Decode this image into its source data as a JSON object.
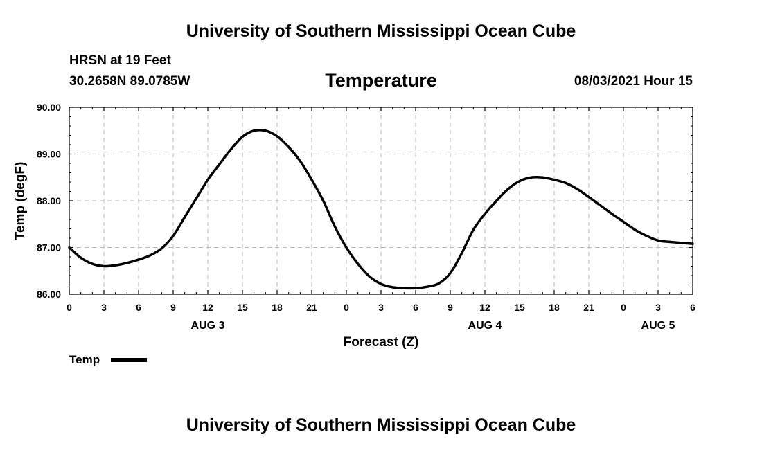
{
  "header": {
    "top_title": "University of Southern Mississippi Ocean Cube",
    "station": "HRSN at 19 Feet",
    "coords": "30.2658N  89.0785W",
    "datetime": "08/03/2021 Hour 15"
  },
  "footer": {
    "bottom_title": "University of Southern Mississippi Ocean Cube"
  },
  "chart_data": {
    "type": "line",
    "title": "Temperature",
    "xlabel": "Forecast (Z)",
    "ylabel": "Temp (degF)",
    "xlim": [
      0,
      54
    ],
    "ylim": [
      86.0,
      90.0
    ],
    "yticks": [
      86.0,
      87.0,
      88.0,
      89.0,
      90.0
    ],
    "ytick_labels": [
      "86.00",
      "87.00",
      "88.00",
      "89.00",
      "90.00"
    ],
    "xticks": [
      0,
      3,
      6,
      9,
      12,
      15,
      18,
      21,
      24,
      27,
      30,
      33,
      36,
      39,
      42,
      45,
      48,
      51,
      54
    ],
    "xtick_labels": [
      "0",
      "3",
      "6",
      "9",
      "12",
      "15",
      "18",
      "21",
      "0",
      "3",
      "6",
      "9",
      "12",
      "15",
      "18",
      "21",
      "0",
      "3",
      "6"
    ],
    "day_labels": [
      {
        "x": 12,
        "label": "AUG 3"
      },
      {
        "x": 36,
        "label": "AUG 4"
      },
      {
        "x": 51,
        "label": "AUG 5"
      }
    ],
    "grid": true,
    "legend": "bottom-left",
    "series": [
      {
        "name": "Temp",
        "color": "#000000",
        "x": [
          0,
          1,
          2,
          3,
          4,
          5,
          6,
          7,
          8,
          9,
          10,
          11,
          12,
          13,
          14,
          15,
          16,
          17,
          18,
          19,
          20,
          21,
          22,
          23,
          24,
          25,
          26,
          27,
          28,
          29,
          30,
          31,
          32,
          33,
          34,
          35,
          36,
          37,
          38,
          39,
          40,
          41,
          42,
          43,
          44,
          45,
          46,
          47,
          48,
          49,
          50,
          51,
          52,
          53,
          54
        ],
        "values": [
          87.0,
          86.78,
          86.65,
          86.6,
          86.62,
          86.67,
          86.74,
          86.83,
          86.98,
          87.25,
          87.65,
          88.05,
          88.45,
          88.78,
          89.1,
          89.37,
          89.5,
          89.5,
          89.38,
          89.15,
          88.85,
          88.45,
          88.0,
          87.45,
          87.0,
          86.65,
          86.38,
          86.22,
          86.15,
          86.13,
          86.13,
          86.16,
          86.23,
          86.45,
          86.88,
          87.38,
          87.72,
          88.0,
          88.25,
          88.42,
          88.5,
          88.5,
          88.45,
          88.38,
          88.25,
          88.08,
          87.9,
          87.72,
          87.55,
          87.38,
          87.25,
          87.15,
          87.12,
          87.1,
          87.08
        ]
      }
    ]
  }
}
